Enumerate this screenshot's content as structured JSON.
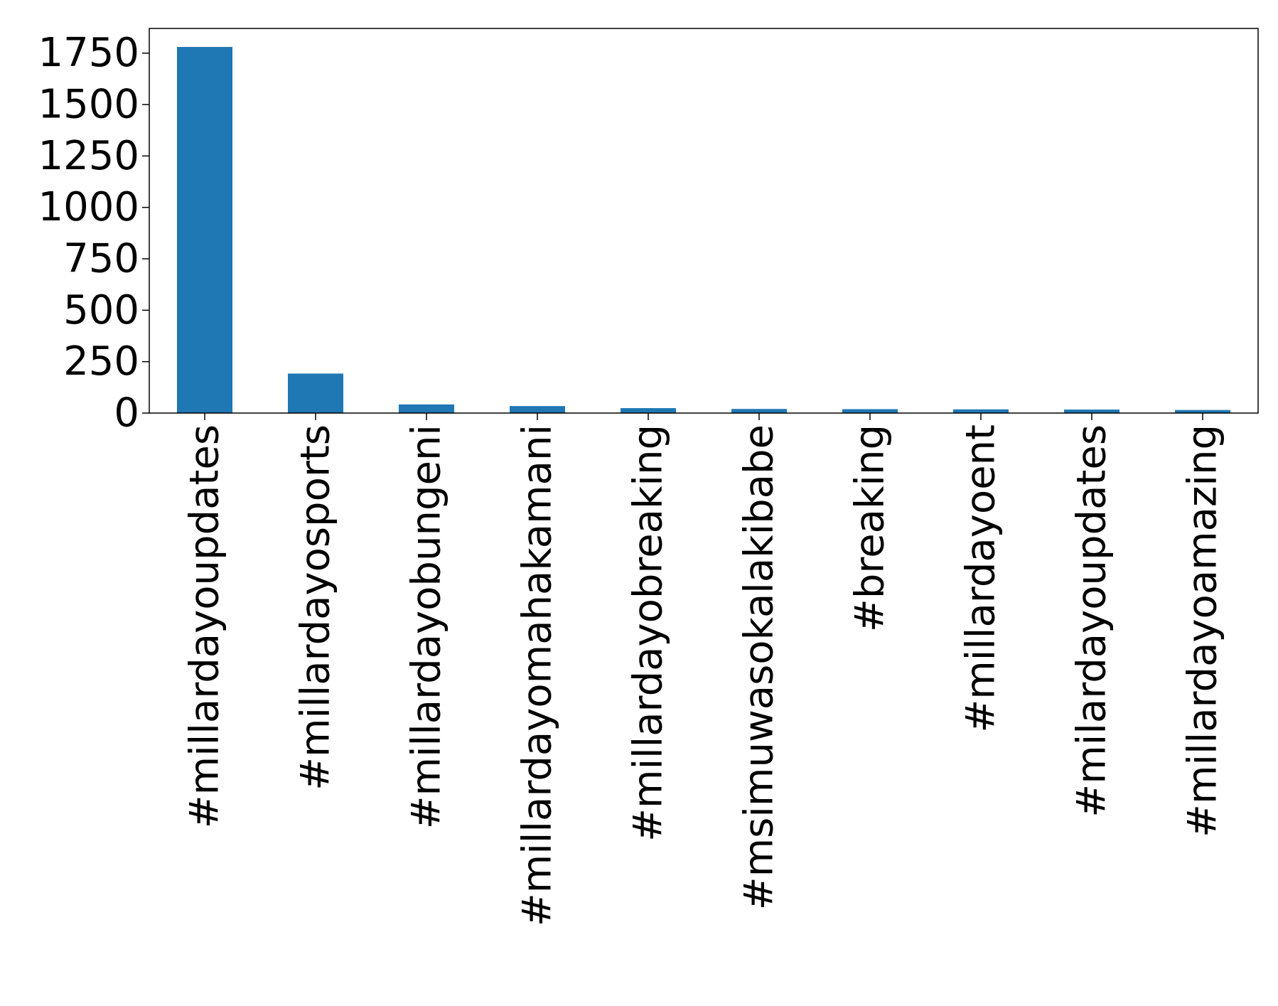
{
  "chart_data": {
    "type": "bar",
    "title": "",
    "xlabel": "",
    "ylabel": "",
    "categories": [
      "#millardayoupdates",
      "#millardayosports",
      "#millardayobungeni",
      "#millardayomahakamani",
      "#millardayobreaking",
      "#msimuwasokalakibabe",
      "#breaking",
      "#millardayoent",
      "#milardayoupdates",
      "#millardayoamazing"
    ],
    "values": [
      1780,
      192,
      42,
      34,
      24,
      20,
      19,
      18,
      17,
      15
    ],
    "ylim": [
      0,
      1870
    ],
    "yticks": [
      0,
      250,
      500,
      750,
      1000,
      1250,
      1500,
      1750
    ],
    "ytick_labels": [
      "0",
      "250",
      "500",
      "750",
      "1000",
      "1250",
      "1500",
      "1750"
    ],
    "color": "#1f77b4",
    "grid": false,
    "legend": "none"
  }
}
